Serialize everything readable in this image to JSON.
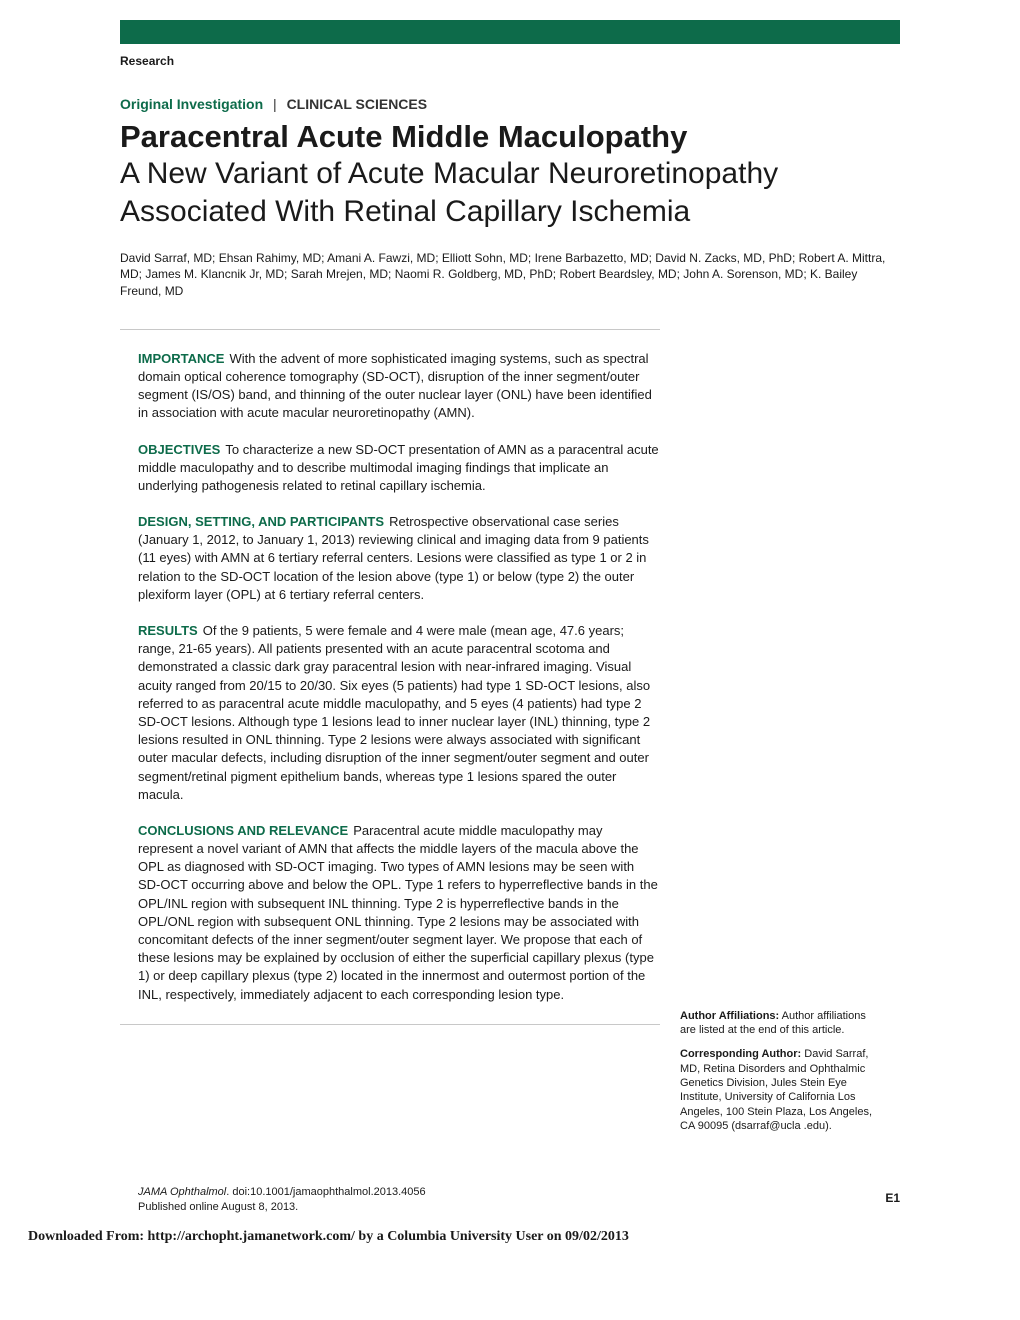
{
  "header": {
    "bar_color": "#0d6b4a",
    "section_label": "Research"
  },
  "article_type": {
    "original": "Original Investigation",
    "separator": "|",
    "clinical": "CLINICAL SCIENCES"
  },
  "title": {
    "line1": "Paracentral Acute Middle Maculopathy",
    "line2": "A New Variant of Acute Macular Neuroretinopathy Associated With Retinal Capillary Ischemia"
  },
  "authors": "David Sarraf, MD; Ehsan Rahimy, MD; Amani A. Fawzi, MD; Elliott Sohn, MD; Irene Barbazetto, MD; David N. Zacks, MD, PhD; Robert A. Mittra, MD; James M. Klancnik Jr, MD; Sarah Mrejen, MD; Naomi R. Goldberg, MD, PhD; Robert Beardsley, MD; John A. Sorenson, MD; K. Bailey Freund, MD",
  "abstract": {
    "importance": {
      "label": "IMPORTANCE",
      "text": "With the advent of more sophisticated imaging systems, such as spectral domain optical coherence tomography (SD-OCT), disruption of the inner segment/outer segment (IS/OS) band, and thinning of the outer nuclear layer (ONL) have been identified in association with acute macular neuroretinopathy (AMN)."
    },
    "objectives": {
      "label": "OBJECTIVES",
      "text": "To characterize a new SD-OCT presentation of AMN as a paracentral acute middle maculopathy and to describe multimodal imaging findings that implicate an underlying pathogenesis related to retinal capillary ischemia."
    },
    "design": {
      "label": "DESIGN, SETTING, AND PARTICIPANTS",
      "text": "Retrospective observational case series (January 1, 2012, to January 1, 2013) reviewing clinical and imaging data from 9 patients (11 eyes) with AMN at 6 tertiary referral centers. Lesions were classified as type 1 or 2 in relation to the SD-OCT location of the lesion above (type 1) or below (type 2) the outer plexiform layer (OPL) at 6 tertiary referral centers."
    },
    "results": {
      "label": "RESULTS",
      "text": "Of the 9 patients, 5 were female and 4 were male (mean age, 47.6 years; range, 21-65 years). All patients presented with an acute paracentral scotoma and demonstrated a classic dark gray paracentral lesion with near-infrared imaging. Visual acuity ranged from 20/15 to 20/30. Six eyes (5 patients) had type 1 SD-OCT lesions, also referred to as paracentral acute middle maculopathy, and 5 eyes (4 patients) had type 2 SD-OCT lesions. Although type 1 lesions lead to inner nuclear layer (INL) thinning, type 2 lesions resulted in ONL thinning. Type 2 lesions were always associated with significant outer macular defects, including disruption of the inner segment/outer segment and outer segment/retinal pigment epithelium bands, whereas type 1 lesions spared the outer macula."
    },
    "conclusions": {
      "label": "CONCLUSIONS AND RELEVANCE",
      "text": "Paracentral acute middle maculopathy may represent a novel variant of AMN that affects the middle layers of the macula above the OPL as diagnosed with SD-OCT imaging. Two types of AMN lesions may be seen with SD-OCT occurring above and below the OPL. Type 1 refers to hyperreflective bands in the OPL/INL region with subsequent INL thinning. Type 2 is hyperreflective bands in the OPL/ONL region with subsequent ONL thinning. Type 2 lesions may be associated with concomitant defects of the inner segment/outer segment layer. We propose that each of these lesions may be explained by occlusion of either the superficial capillary plexus (type 1) or deep capillary plexus (type 2) located in the innermost and outermost portion of the INL, respectively, immediately adjacent to each corresponding lesion type."
    }
  },
  "sidebar": {
    "affiliations": {
      "label": "Author Affiliations:",
      "text": " Author affiliations are listed at the end of this article."
    },
    "corresponding": {
      "label": "Corresponding Author:",
      "text": " David Sarraf, MD, Retina Disorders and Ophthalmic Genetics Division, Jules Stein Eye Institute, University of California Los Angeles, 100 Stein Plaza, Los Angeles, CA 90095 (dsarraf@ucla .edu)."
    }
  },
  "citation": {
    "journal": "JAMA Ophthalmol",
    "doi": ". doi:10.1001/jamaophthalmol.2013.4056",
    "published": "Published online August 8, 2013."
  },
  "page_number": "E1",
  "footer": "Downloaded From: http://archopht.jamanetwork.com/ by a Columbia University User  on 09/02/2013",
  "colors": {
    "accent_green": "#0d6b4a",
    "text": "#1a1a1a",
    "border": "#c8c8c8",
    "background": "#ffffff"
  }
}
